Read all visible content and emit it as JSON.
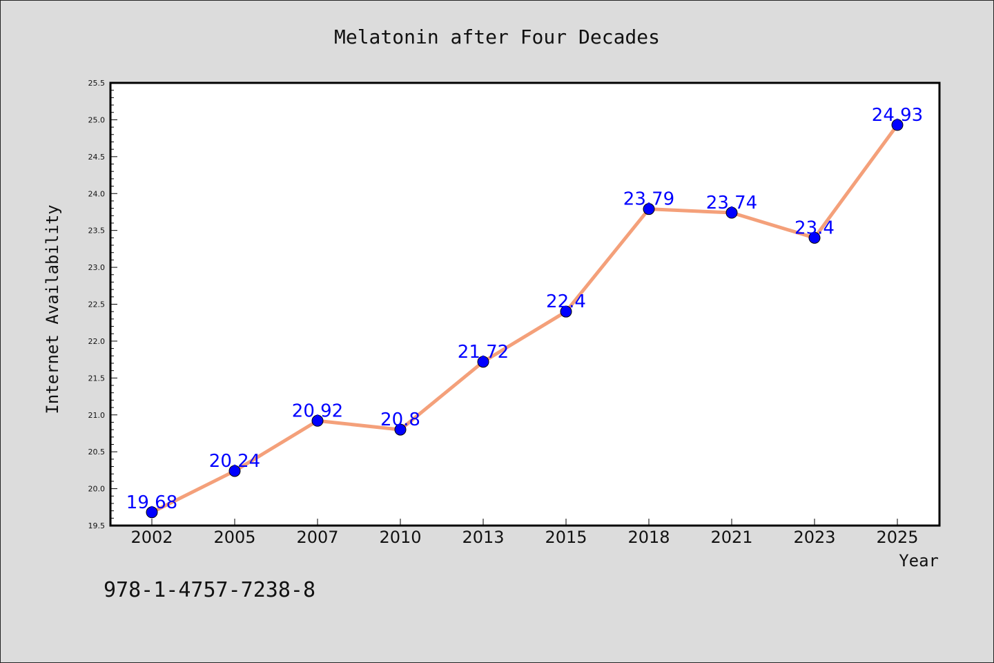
{
  "chart_data": {
    "type": "line",
    "title": "Melatonin after Four Decades",
    "xlabel": "Year",
    "ylabel": "Internet Availability",
    "categories": [
      "2002",
      "2005",
      "2007",
      "2010",
      "2013",
      "2015",
      "2018",
      "2021",
      "2023",
      "2025"
    ],
    "series": [
      {
        "values": [
          19.68,
          20.24,
          20.92,
          20.8,
          21.72,
          22.4,
          23.79,
          23.74,
          23.4,
          24.93
        ],
        "data_labels": [
          "19.68",
          "20.24",
          "20.92",
          "20.8",
          "21.72",
          "22.4",
          "23.79",
          "23.74",
          "23.4",
          "24.93"
        ],
        "line_color": "#f4a07a",
        "marker_color": "#0000ff"
      }
    ],
    "ylim": [
      19.5,
      25.5
    ],
    "yticks": [
      "19.5",
      "20.0",
      "20.5",
      "21.0",
      "21.5",
      "22.0",
      "22.5",
      "23.0",
      "23.5",
      "24.0",
      "24.5",
      "25.0",
      "25.5"
    ],
    "grid": false,
    "legend": "none"
  },
  "footer": {
    "isbn": "978-1-4757-7238-8"
  }
}
